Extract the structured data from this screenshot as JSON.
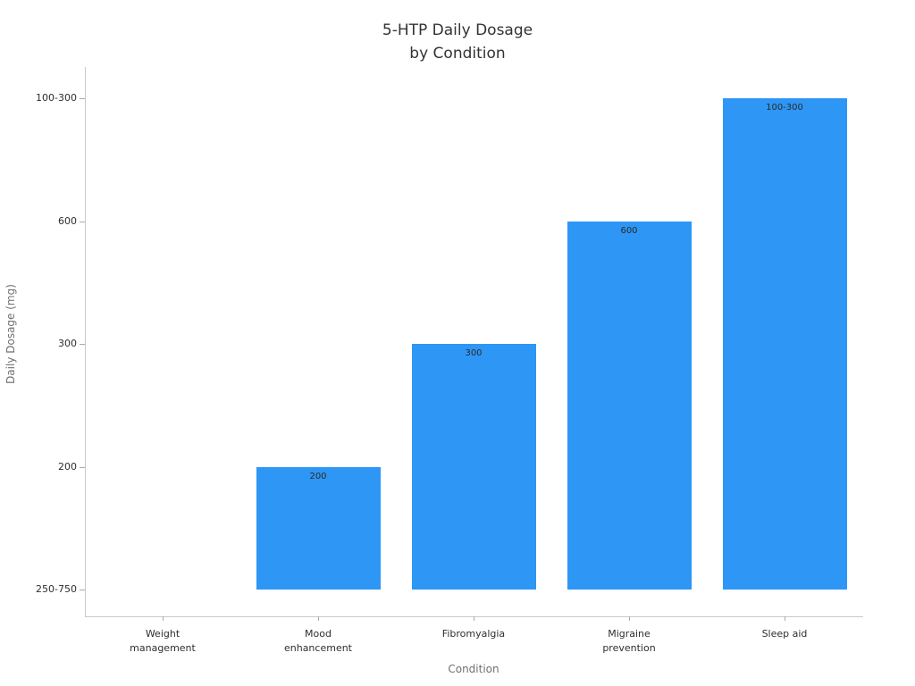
{
  "chart_data": {
    "type": "bar",
    "title": "5-HTP Daily Dosage\nby Condition",
    "xlabel": "Condition",
    "ylabel": "Daily Dosage (mg)",
    "categories": [
      "Weight\nmanagement",
      "Mood\nenhancement",
      "Fibromyalgia",
      "Migraine\nprevention",
      "Sleep aid"
    ],
    "values": [
      "250-750",
      "200",
      "300",
      "600",
      "100-300"
    ],
    "y_tick_labels": [
      "250-750",
      "200",
      "300",
      "600",
      "100-300"
    ],
    "bar_color": "#2E96F5",
    "layout": {
      "legend": "none",
      "grid": false,
      "y_axis_type": "category",
      "bar_labels": "inside-top"
    }
  }
}
